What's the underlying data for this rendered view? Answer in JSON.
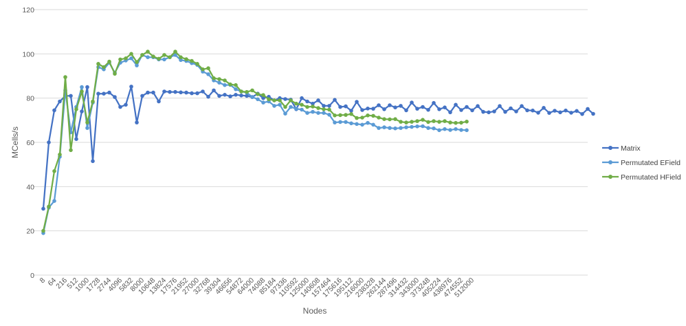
{
  "chart_data": {
    "type": "line",
    "title": "",
    "xlabel": "Nodes",
    "ylabel": "MCells/s",
    "ylim": [
      0,
      120
    ],
    "yticks": [
      0,
      20,
      40,
      60,
      80,
      100,
      120
    ],
    "grid": true,
    "legend_position": "right",
    "x_tick_labels": [
      "8",
      "64",
      "216",
      "512",
      "1000",
      "1728",
      "2744",
      "4096",
      "5832",
      "8000",
      "10648",
      "13824",
      "17576",
      "21952",
      "27000",
      "32768",
      "39304",
      "46656",
      "54872",
      "64000",
      "74088",
      "85184",
      "97336",
      "110592",
      "125000",
      "140608",
      "157464",
      "175616",
      "195112",
      "216000",
      "238328",
      "262144",
      "287496",
      "314432",
      "343000",
      "373248",
      "405224",
      "438976",
      "474552",
      "512000"
    ],
    "series": [
      {
        "name": "Matrix",
        "color": "#4472C4",
        "values": [
          30,
          60,
          74.5,
          78.5,
          81,
          81,
          61.5,
          74,
          85,
          51.5,
          82,
          82,
          82.5,
          80.5,
          76,
          77,
          85.2,
          69,
          81,
          82.5,
          82.5,
          78.5,
          83,
          82.8,
          82.8,
          82.6,
          82.5,
          82.2,
          82.2,
          83,
          80.6,
          83.5,
          81,
          81.5,
          80.8,
          81.5,
          81.2,
          81,
          80.5,
          82,
          80,
          80.6,
          79,
          80,
          79.6,
          79.3,
          75,
          80,
          78.5,
          77.5,
          79,
          76.5,
          76.5,
          79.2,
          76,
          76.3,
          74.3,
          78.3,
          74.6,
          75.3,
          75.2,
          76.8,
          75,
          76.8,
          75.8,
          76.5,
          74.5,
          78,
          75.2,
          76,
          74.7,
          77.8,
          75,
          75.8,
          73.6,
          77,
          74.6,
          76,
          74.5,
          76.4,
          73.8,
          73.6,
          74,
          76.4,
          73.8,
          75.4,
          74,
          76.4,
          74.5,
          74.4,
          73.4,
          75.6,
          73.3,
          74.3,
          73.6,
          74.4,
          73.4,
          74.2,
          72.8,
          75.1,
          72.9
        ]
      },
      {
        "name": "Permutated EField",
        "color": "#5B9BD5",
        "values": [
          19,
          30.5,
          33.5,
          53.5,
          83.5,
          64.5,
          76,
          85,
          66.5,
          78,
          94,
          93,
          96,
          91.5,
          96,
          97,
          98,
          94.8,
          99.5,
          98.5,
          98.5,
          97.5,
          97.5,
          98.5,
          99.5,
          97.2,
          96.8,
          95.8,
          95,
          92,
          90.8,
          88,
          87,
          85.9,
          86,
          84,
          83,
          82.5,
          80.5,
          79.5,
          78,
          78.5,
          76.5,
          77,
          73,
          76,
          75.2,
          74.8,
          73.3,
          73.8,
          73.3,
          73.3,
          72.5,
          69,
          69.2,
          69.2,
          68.6,
          68.3,
          68,
          68.8,
          68,
          66.5,
          66.8,
          66.5,
          66.3,
          66.5,
          66.8,
          67,
          67.2,
          67.3,
          66.5,
          66.3,
          65.5,
          66,
          65.6,
          66,
          65.6,
          65.5
        ]
      },
      {
        "name": "Permutated HField",
        "color": "#70AD47",
        "values": [
          20,
          31,
          47,
          54.5,
          89.5,
          56.5,
          75,
          83,
          69,
          78.5,
          95.5,
          94,
          96.5,
          91,
          97.5,
          98,
          100,
          96.3,
          99.5,
          101,
          98.8,
          97.8,
          99.5,
          98.5,
          101,
          98.5,
          97.6,
          96.8,
          95.5,
          93,
          93.5,
          89,
          88.6,
          88,
          86.2,
          85.9,
          83,
          82.8,
          83.5,
          81.8,
          81.4,
          79.5,
          79,
          79,
          76,
          79,
          77.5,
          77,
          76,
          76.2,
          75.5,
          75,
          74.8,
          72.2,
          72.3,
          72.4,
          72.8,
          71,
          71.2,
          72.2,
          72,
          71.2,
          70.5,
          70.4,
          70.5,
          69.3,
          69,
          69.3,
          69.6,
          70.2,
          69.2,
          69.6,
          69.3,
          69.6,
          69,
          68.8,
          68.9,
          69.4
        ]
      }
    ]
  }
}
